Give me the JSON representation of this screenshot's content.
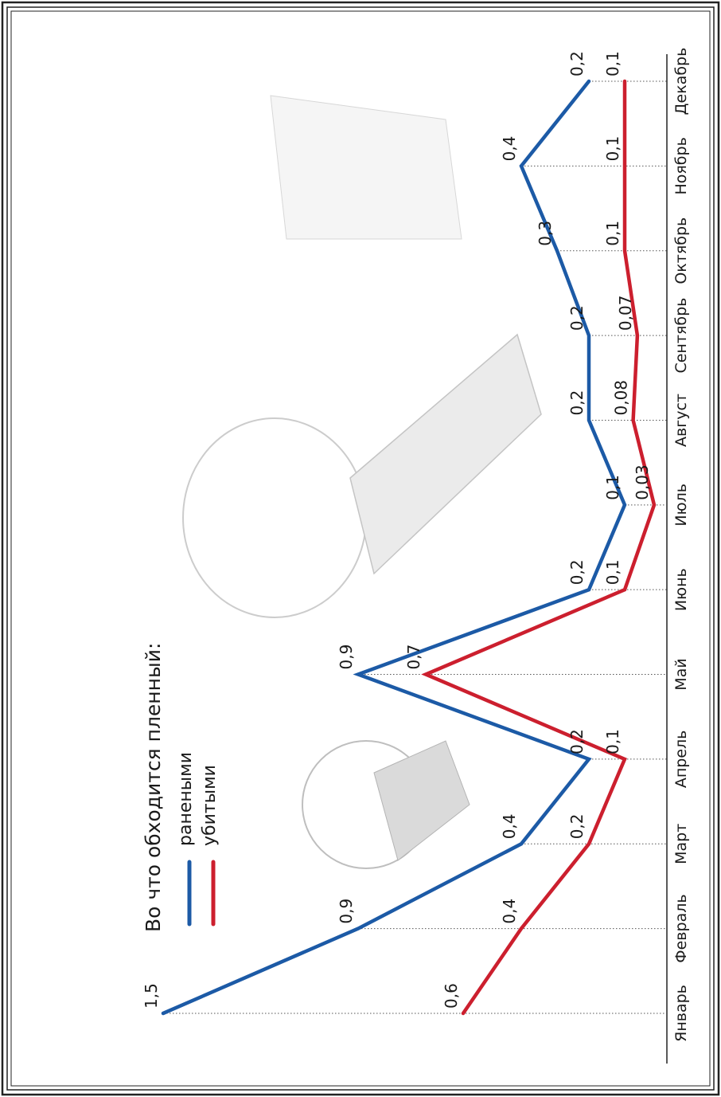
{
  "chart_data": {
    "type": "line",
    "title": "Во что обходится пленный:",
    "categories": [
      "Январь",
      "Февраль",
      "Март",
      "Апрель",
      "Май",
      "Июнь",
      "Июль",
      "Август",
      "Сентябрь",
      "Октябрь",
      "Ноябрь",
      "Декабрь"
    ],
    "series": [
      {
        "name": "ранеными",
        "color": "#1c5aa6",
        "values": [
          1.5,
          0.9,
          0.4,
          0.2,
          0.9,
          0.2,
          0.1,
          0.2,
          0.2,
          0.3,
          0.4,
          0.2
        ],
        "labels": [
          "1,5",
          "0,9",
          "0,4",
          "0,2",
          "0,9",
          "0,2",
          "0,1",
          "0,2",
          "0,2",
          "0,3",
          "0,4",
          "0,2"
        ]
      },
      {
        "name": "убитыми",
        "color": "#cc1f2e",
        "values": [
          0.6,
          0.4,
          0.2,
          0.1,
          0.7,
          0.1,
          0.03,
          0.08,
          0.07,
          0.1,
          0.1,
          0.1
        ],
        "labels": [
          "0,6",
          "0,4",
          "0,2",
          "0,1",
          "0,7",
          "0,1",
          "0,03",
          "0,08",
          "0,07",
          "0,1",
          "0,1",
          "0,1"
        ]
      }
    ],
    "legend_position": "top-left",
    "orientation": "rotated-90-counterclockwise",
    "grid": "dotted-vertical-lines-per-month"
  }
}
